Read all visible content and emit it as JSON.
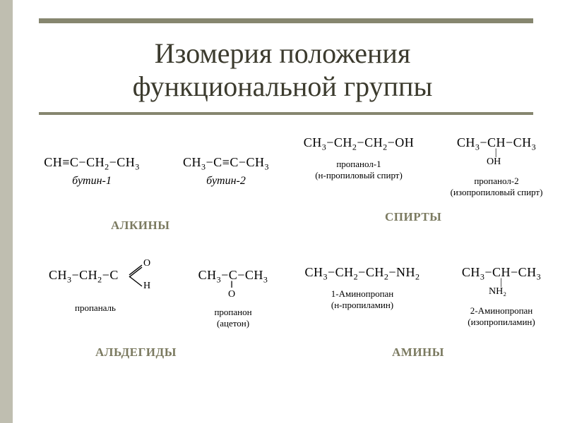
{
  "style": {
    "background_color": "#ffffff",
    "sidebar_color": "#bfbeb0",
    "rule_color": "#86866f",
    "title_color": "#3c3b2e",
    "label_color": "#7b7a60",
    "text_color": "#000000",
    "title_fontsize": 40,
    "formula_fontsize": 18,
    "name_fontsize": 16,
    "sub_fontsize": 13,
    "label_fontsize": 17
  },
  "title_line1": "Изомерия положения",
  "title_line2": "функциональной группы",
  "groups": {
    "alkynes": "АЛКИНЫ",
    "alcohols": "СПИРТЫ",
    "aldehydes": "АЛЬДЕГИДЫ",
    "amines": "АМИНЫ"
  },
  "alkynes": {
    "a1": {
      "formula": "CH≡C−CH₂−CH₃",
      "name": "бутин-1"
    },
    "a2": {
      "formula": "CH₃−C≡C−CH₃",
      "name": "бутин-2"
    }
  },
  "alcohols": {
    "b1": {
      "formula": "CH₃−CH₂−CH₂−OH",
      "name": "пропанол-1",
      "sub": "(н-пропиловый спирт)"
    },
    "b2": {
      "formula": "CH₃−CH−CH₃",
      "ext_line1": "|",
      "ext_line2": "OH",
      "name": "пропанол-2",
      "sub": "(изопропиловый спирт)"
    }
  },
  "aldehydes": {
    "c1": {
      "formula": "CH₃−CH₂−C",
      "ext_top": "O",
      "ext_bot": "H",
      "name": "пропаналь"
    },
    "c2": {
      "formula": "CH₃−C−CH₃",
      "ext_line1": "‖",
      "ext_line2": "O",
      "name": "пропанон",
      "sub": "(ацетон)"
    }
  },
  "amines": {
    "d1": {
      "formula": "CH₃−CH₂−CH₂−NH₂",
      "name": "1-Аминопропан",
      "sub": "(н-пропиламин)"
    },
    "d2": {
      "formula": "CH₃−CH−CH₃",
      "ext_line1": "|",
      "ext_line2": "NH₂",
      "name": "2-Аминопропан",
      "sub": "(изопропиламин)"
    }
  }
}
